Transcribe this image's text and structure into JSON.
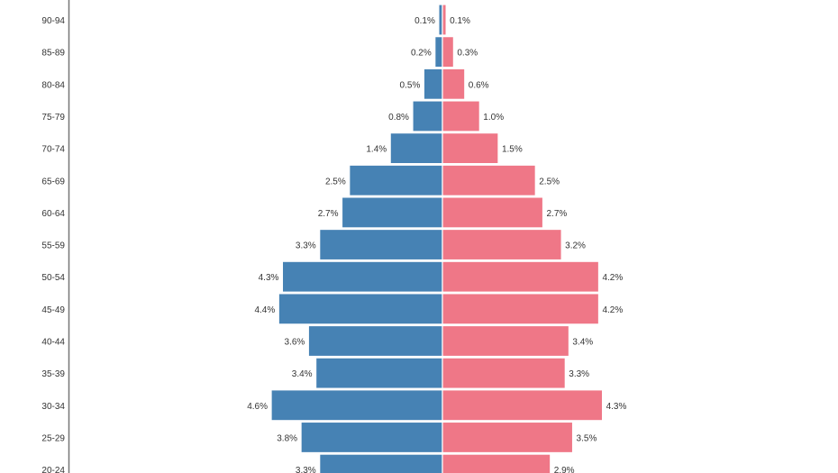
{
  "chart_data": {
    "type": "bar",
    "orientation": "horizontal",
    "subtype": "population-pyramid",
    "categories": [
      "90-94",
      "85-89",
      "80-84",
      "75-79",
      "70-74",
      "65-69",
      "60-64",
      "55-59",
      "50-54",
      "45-49",
      "40-44",
      "35-39",
      "30-34",
      "25-29",
      "20-24"
    ],
    "series": [
      {
        "side": "left",
        "color": "#4682b4",
        "values": [
          0.1,
          0.2,
          0.5,
          0.8,
          1.4,
          2.5,
          2.7,
          3.3,
          4.3,
          4.4,
          3.6,
          3.4,
          4.6,
          3.8,
          3.3
        ],
        "labels": [
          "0.1%",
          "0.2%",
          "0.5%",
          "0.8%",
          "1.4%",
          "2.5%",
          "2.7%",
          "3.3%",
          "4.3%",
          "4.4%",
          "3.6%",
          "3.4%",
          "4.6%",
          "3.8%",
          "3.3%"
        ]
      },
      {
        "side": "right",
        "color": "#ef7787",
        "values": [
          0.1,
          0.3,
          0.6,
          1.0,
          1.5,
          2.5,
          2.7,
          3.2,
          4.2,
          4.2,
          3.4,
          3.3,
          4.3,
          3.5,
          2.9
        ],
        "labels": [
          "0.1%",
          "0.3%",
          "0.6%",
          "1.0%",
          "1.5%",
          "2.5%",
          "2.7%",
          "3.2%",
          "4.2%",
          "4.2%",
          "3.4%",
          "3.3%",
          "4.3%",
          "3.5%",
          "2.9%"
        ]
      }
    ],
    "unit": "%",
    "grid": false
  }
}
